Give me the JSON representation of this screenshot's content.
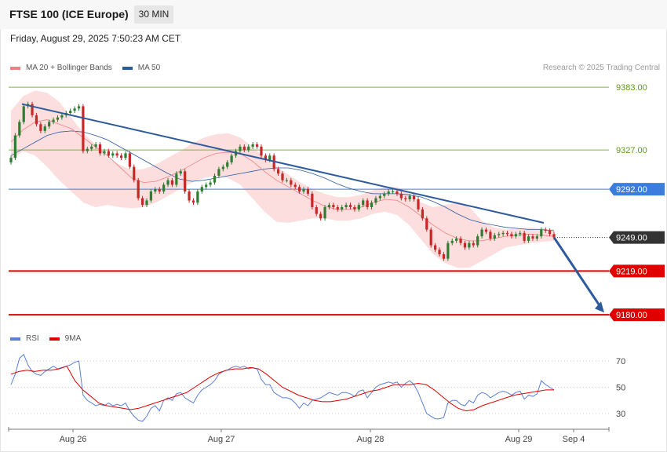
{
  "header": {
    "title": "FTSE 100 (ICE Europe)",
    "timeframe": "30 MIN"
  },
  "timestamp": "Friday, August 29, 2025 7:50:23 AM CET",
  "credit": "Research © 2025 Trading Central",
  "colors": {
    "up": "#2e7d32",
    "down": "#c62828",
    "band": "#fcdede",
    "ma20": "#f08080",
    "ma50": "#2d5a9c",
    "trendline": "#2d5a9c",
    "resistance": "#7cb342",
    "pivot": "#3b7ddd",
    "support": "#e00000",
    "current": "#333333",
    "rsi": "#5b7fd6",
    "rsi_ma": "#e00000"
  },
  "chart_data": [
    {
      "type": "candlestick",
      "legend": [
        {
          "label": "MA 20 + Bollinger Bands",
          "color": "#f08080"
        },
        {
          "label": "MA 50",
          "color": "#2d5a9c"
        }
      ],
      "x_ticks": [
        "Aug 26",
        "Aug 27",
        "Aug 28",
        "Aug 29",
        "Sep 4"
      ],
      "y_range": [
        9178,
        9388
      ],
      "price_levels": [
        {
          "label": "9383.00",
          "value": 9383,
          "kind": "resistance"
        },
        {
          "label": "9327.00",
          "value": 9327,
          "kind": "resistance"
        },
        {
          "label": "9292.00",
          "value": 9292,
          "kind": "pivot"
        },
        {
          "label": "9249.00",
          "value": 9249,
          "kind": "current"
        },
        {
          "label": "9219.00",
          "value": 9219,
          "kind": "support"
        },
        {
          "label": "9180.00",
          "value": 9180,
          "kind": "support"
        }
      ],
      "candle_closes": [
        9320,
        9340,
        9352,
        9366,
        9368,
        9358,
        9350,
        9344,
        9348,
        9352,
        9354,
        9356,
        9358,
        9360,
        9362,
        9364,
        9366,
        9326,
        9328,
        9330,
        9332,
        9324,
        9326,
        9322,
        9324,
        9322,
        9320,
        9324,
        9312,
        9300,
        9284,
        9278,
        9282,
        9290,
        9292,
        9290,
        9296,
        9300,
        9296,
        9306,
        9308,
        9290,
        9282,
        9280,
        9290,
        9294,
        9296,
        9298,
        9304,
        9310,
        9312,
        9316,
        9322,
        9326,
        9330,
        9327,
        9330,
        9332,
        9330,
        9322,
        9318,
        9322,
        9310,
        9306,
        9300,
        9300,
        9296,
        9294,
        9290,
        9292,
        9288,
        9276,
        9270,
        9266,
        9276,
        9278,
        9276,
        9274,
        9276,
        9278,
        9276,
        9274,
        9278,
        9282,
        9276,
        9280,
        9284,
        9286,
        9288,
        9290,
        9290,
        9288,
        9284,
        9283,
        9286,
        9283,
        9274,
        9266,
        9256,
        9242,
        9238,
        9234,
        9230,
        9244,
        9246,
        9248,
        9244,
        9240,
        9244,
        9242,
        9250,
        9256,
        9254,
        9248,
        9251,
        9252,
        9253,
        9252,
        9250,
        9252,
        9253,
        9246,
        9250,
        9248,
        9250,
        9256,
        9255,
        9252,
        9249
      ],
      "ma20_mid": [
        9334,
        9345,
        9352,
        9354,
        9350,
        9346,
        9338,
        9330,
        9322,
        9312,
        9302,
        9298,
        9299,
        9303,
        9308,
        9314,
        9320,
        9324,
        9325,
        9324,
        9317,
        9308,
        9300,
        9294,
        9288,
        9282,
        9277,
        9274,
        9274,
        9276,
        9280,
        9283,
        9282,
        9276,
        9268,
        9260,
        9253,
        9248,
        9246,
        9246,
        9248,
        9250,
        9251,
        9252,
        9251,
        9250
      ],
      "ma20_upper": [
        9362,
        9375,
        9380,
        9378,
        9370,
        9356,
        9342,
        9332,
        9320,
        9314,
        9309,
        9310,
        9314,
        9320,
        9326,
        9333,
        9338,
        9341,
        9342,
        9338,
        9330,
        9320,
        9312,
        9305,
        9298,
        9292,
        9288,
        9285,
        9285,
        9287,
        9291,
        9294,
        9294,
        9288,
        9280,
        9276,
        9278,
        9280,
        9276,
        9264,
        9258,
        9256,
        9257,
        9258,
        9257,
        9256
      ],
      "ma20_lower": [
        9318,
        9326,
        9322,
        9312,
        9300,
        9290,
        9280,
        9276,
        9278,
        9276,
        9275,
        9276,
        9280,
        9286,
        9292,
        9298,
        9302,
        9304,
        9302,
        9296,
        9284,
        9272,
        9263,
        9262,
        9264,
        9266,
        9266,
        9264,
        9264,
        9266,
        9270,
        9272,
        9269,
        9260,
        9247,
        9234,
        9226,
        9222,
        9222,
        9228,
        9234,
        9240,
        9242,
        9244,
        9245,
        9246
      ],
      "ma50": [
        9322,
        9328,
        9334,
        9340,
        9343,
        9344,
        9343,
        9340,
        9336,
        9330,
        9324,
        9318,
        9312,
        9306,
        9301,
        9299,
        9300,
        9302,
        9304,
        9306,
        9308,
        9310,
        9311,
        9311,
        9309,
        9306,
        9302,
        9297,
        9293,
        9290,
        9288,
        9288,
        9288,
        9287,
        9285,
        9281,
        9276,
        9270,
        9265,
        9262,
        9260,
        9258,
        9257,
        9256,
        9256,
        9255
      ],
      "trendline": [
        [
          9368,
          9262
        ]
      ]
    },
    {
      "type": "line",
      "legend": [
        {
          "label": "RSI",
          "color": "#5b7fd6"
        },
        {
          "label": "9MA",
          "color": "#e00000"
        }
      ],
      "y_ticks": [
        "70",
        "50",
        "30"
      ],
      "y_range": [
        20,
        80
      ],
      "series": [
        {
          "name": "RSI",
          "values": [
            52,
            60,
            72,
            75,
            67,
            62,
            60,
            59,
            62,
            64,
            66,
            64,
            65,
            66,
            67,
            69,
            70,
            44,
            40,
            38,
            36,
            37,
            36,
            38,
            36,
            37,
            36,
            38,
            32,
            28,
            25,
            24,
            28,
            34,
            36,
            32,
            40,
            42,
            40,
            45,
            46,
            42,
            40,
            38,
            44,
            48,
            50,
            52,
            55,
            60,
            62,
            63,
            65,
            66,
            65,
            66,
            64,
            65,
            64,
            56,
            52,
            52,
            46,
            44,
            42,
            42,
            41,
            38,
            34,
            38,
            36,
            40,
            41,
            42,
            44,
            46,
            45,
            44,
            46,
            46,
            45,
            43,
            47,
            48,
            42,
            46,
            50,
            52,
            53,
            54,
            53,
            54,
            50,
            53,
            55,
            52,
            46,
            38,
            30,
            28,
            26,
            26,
            27,
            38,
            40,
            40,
            37,
            36,
            40,
            38,
            44,
            46,
            45,
            42,
            44,
            46,
            47,
            46,
            44,
            46,
            47,
            41,
            44,
            43,
            45,
            55,
            52,
            50,
            48
          ]
        },
        {
          "name": "9MA",
          "values": [
            60,
            62,
            63,
            62,
            63,
            63,
            64,
            66,
            55,
            48,
            43,
            38,
            36,
            35,
            34,
            33,
            34,
            36,
            38,
            40,
            42,
            44,
            46,
            50,
            54,
            58,
            61,
            63,
            64,
            64,
            65,
            64,
            60,
            55,
            50,
            47,
            44,
            42,
            40,
            39,
            39,
            40,
            41,
            43,
            45,
            47,
            48,
            50,
            52,
            52,
            52,
            53,
            52,
            48,
            43,
            38,
            34,
            32,
            33,
            36,
            38,
            40,
            42,
            44,
            45,
            46,
            47,
            48,
            48
          ]
        }
      ]
    }
  ]
}
